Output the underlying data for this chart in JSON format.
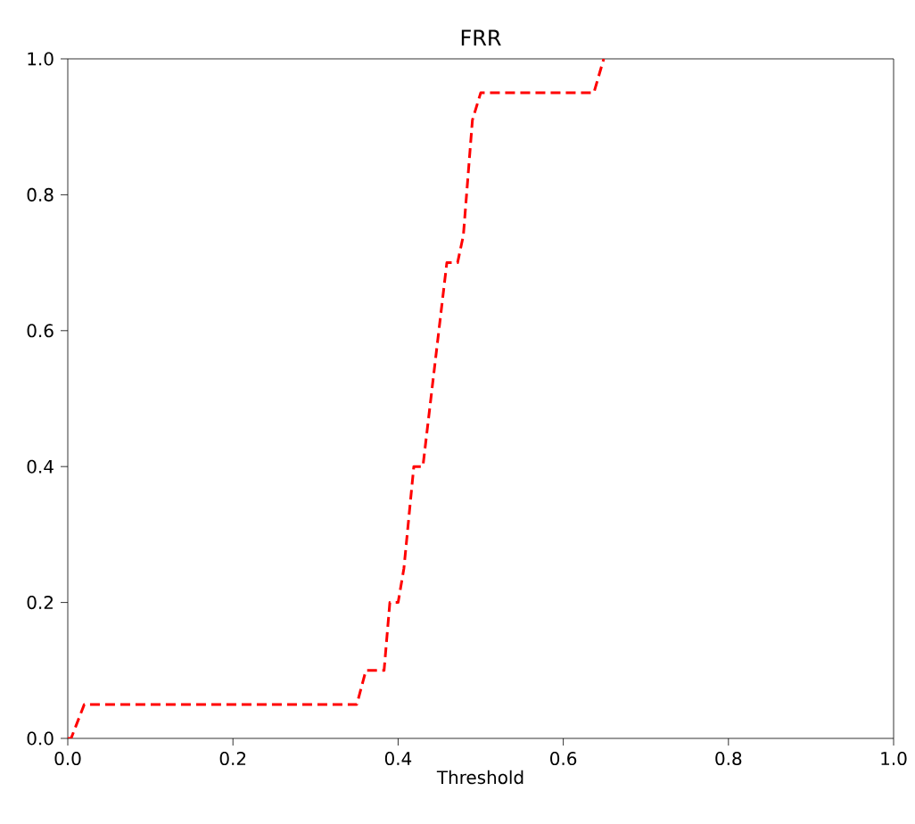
{
  "chart_data": {
    "type": "line",
    "title": "FRR",
    "xlabel": "Threshold",
    "x": [
      0,
      0.004,
      0.02,
      0.35,
      0.361,
      0.383,
      0.39,
      0.4,
      0.407,
      0.419,
      0.43,
      0.459,
      0.472,
      0.479,
      0.49,
      0.5,
      0.637,
      0.649
    ],
    "series": [
      {
        "color": "#ff0000",
        "values": [
          0,
          0,
          0.05,
          0.05,
          0.1,
          0.1,
          0.2,
          0.2,
          0.25,
          0.4,
          0.4,
          0.7,
          0.7,
          0.74,
          0.91,
          0.95,
          0.95,
          1.0
        ]
      }
    ],
    "line_style": "dashed",
    "marker": "none",
    "xlim": [
      0,
      1
    ],
    "ylim": [
      0,
      1
    ],
    "xticks": [
      {
        "value": 0,
        "label": "0.0"
      },
      0.2,
      0.4,
      0.6,
      0.8,
      {
        "value": 1,
        "label": "1.0"
      }
    ],
    "yticks": [
      {
        "value": 0,
        "label": "0.0"
      },
      0.2,
      0.4,
      0.6,
      0.8,
      {
        "value": 1,
        "label": "1.0"
      }
    ],
    "grid": false
  }
}
